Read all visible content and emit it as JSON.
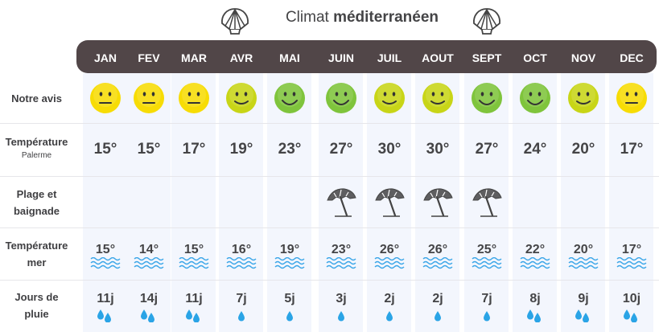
{
  "title": {
    "prefix": "Climat ",
    "bold": "méditerranéen"
  },
  "months": [
    "JAN",
    "FEV",
    "MAR",
    "AVR",
    "MAI",
    "JUIN",
    "JUIL",
    "AOUT",
    "SEPT",
    "OCT",
    "NOV",
    "DEC"
  ],
  "row_labels": {
    "avis": "Notre avis",
    "temperature": "Température",
    "temperature_sub": "Palerme",
    "plage_1": "Plage et",
    "plage_2": "baignade",
    "mer_1": "Température",
    "mer_2": "mer",
    "pluie_1": "Jours de",
    "pluie_2": "pluie"
  },
  "ratings": [
    "neutral",
    "neutral",
    "neutral",
    "good",
    "great",
    "great",
    "good",
    "good",
    "great",
    "great",
    "good",
    "neutral"
  ],
  "rating_colors": {
    "neutral": "#f7dc05",
    "good": "#c8d517",
    "great": "#7fc43c"
  },
  "temperatures": [
    "15°",
    "15°",
    "17°",
    "19°",
    "23°",
    "27°",
    "30°",
    "30°",
    "27°",
    "24°",
    "20°",
    "17°"
  ],
  "beach": [
    false,
    false,
    false,
    false,
    false,
    true,
    true,
    true,
    true,
    false,
    false,
    false
  ],
  "sea_temperatures": [
    "15°",
    "14°",
    "15°",
    "16°",
    "19°",
    "23°",
    "26°",
    "26°",
    "25°",
    "22°",
    "20°",
    "17°"
  ],
  "rain_days": [
    "11j",
    "14j",
    "11j",
    "7j",
    "5j",
    "3j",
    "2j",
    "2j",
    "7j",
    "8j",
    "9j",
    "10j"
  ],
  "rain_drops": [
    2,
    2,
    2,
    1,
    1,
    1,
    1,
    1,
    1,
    2,
    2,
    2
  ],
  "colors": {
    "header_bar": "#514648",
    "column_bg": "#f3f6fd",
    "wave": "#3ba6e8",
    "drop": "#2aa4e6",
    "text": "#444446"
  },
  "icons": {
    "shell": "scallop-shell-icon",
    "umbrella": "beach-umbrella-icon",
    "wave": "wave-icon",
    "drop": "raindrop-icon"
  }
}
